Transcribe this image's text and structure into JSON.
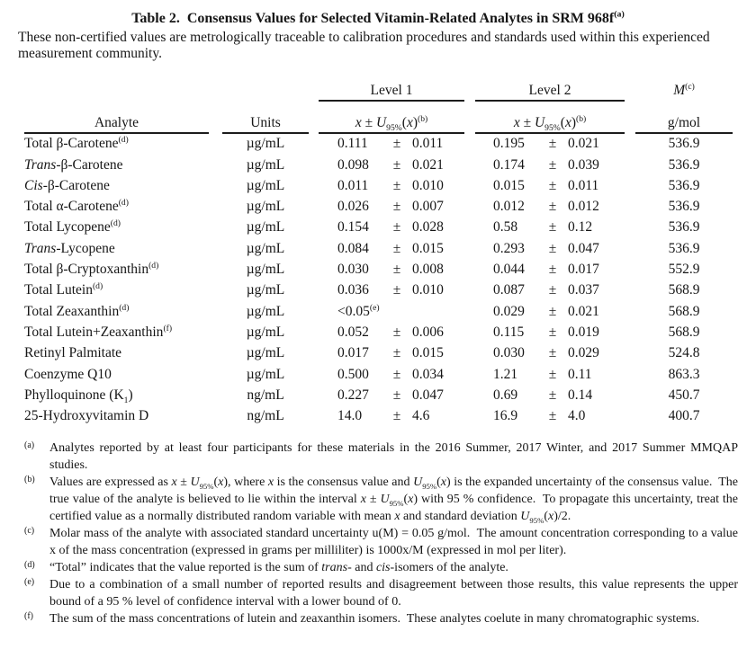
{
  "colors": {
    "text": "#161616",
    "background": "#ffffff",
    "rule": "#1c1c1c"
  },
  "title_segments": [
    {
      "t": "Table 2.  Consensus Values for Selected Vitamin-Related Analytes in SRM 968f"
    },
    {
      "t": "(a)",
      "s": "sup"
    }
  ],
  "subtitle": "These non-certified values are metrologically traceable to calibration procedures and standards used within this experienced measurement community.",
  "table": {
    "group_headers": {
      "level1": "Level 1",
      "level2": "Level 2"
    },
    "m_header_segments": [
      {
        "t": "M",
        "s": "i"
      },
      {
        "t": "(c)",
        "s": "sup"
      }
    ],
    "m_units": "g/mol",
    "headers": {
      "analyte": "Analyte",
      "units": "Units"
    },
    "value_expr_segments": [
      {
        "t": "x",
        "s": "i"
      },
      {
        "t": " ± "
      },
      {
        "t": "U",
        "s": "i"
      },
      {
        "t": "95%",
        "s": "sub"
      },
      {
        "t": "("
      },
      {
        "t": "x",
        "s": "i"
      },
      {
        "t": ")"
      },
      {
        "t": "(b)",
        "s": "sup"
      }
    ],
    "rows": [
      {
        "analyte": [
          {
            "t": "Total β-Carotene"
          },
          {
            "t": "(d)",
            "s": "sup"
          }
        ],
        "units": "µg/mL",
        "l1": {
          "val": "0.111",
          "pm": "±",
          "unc": "0.011"
        },
        "l2": {
          "val": "0.195",
          "pm": "±",
          "unc": "0.021"
        },
        "m": "536.9"
      },
      {
        "analyte": [
          {
            "t": "Trans",
            "s": "i"
          },
          {
            "t": "-β-Carotene"
          }
        ],
        "units": "µg/mL",
        "l1": {
          "val": "0.098",
          "pm": "±",
          "unc": "0.021"
        },
        "l2": {
          "val": "0.174",
          "pm": "±",
          "unc": "0.039"
        },
        "m": "536.9"
      },
      {
        "analyte": [
          {
            "t": "Cis",
            "s": "i"
          },
          {
            "t": "-β-Carotene"
          }
        ],
        "units": "µg/mL",
        "l1": {
          "val": "0.011",
          "pm": "±",
          "unc": "0.010"
        },
        "l2": {
          "val": "0.015",
          "pm": "±",
          "unc": "0.011"
        },
        "m": "536.9"
      },
      {
        "analyte": [
          {
            "t": "Total α-Carotene"
          },
          {
            "t": "(d)",
            "s": "sup"
          }
        ],
        "units": "µg/mL",
        "l1": {
          "val": "0.026",
          "pm": "±",
          "unc": "0.007"
        },
        "l2": {
          "val": "0.012",
          "pm": "±",
          "unc": "0.012"
        },
        "m": "536.9"
      },
      {
        "analyte": [
          {
            "t": "Total Lycopene"
          },
          {
            "t": "(d)",
            "s": "sup"
          }
        ],
        "units": "µg/mL",
        "l1": {
          "val": "0.154",
          "pm": "±",
          "unc": "0.028"
        },
        "l2": {
          "val": "0.58",
          "pm": "±",
          "unc": "0.12"
        },
        "m": "536.9"
      },
      {
        "analyte": [
          {
            "t": "Trans",
            "s": "i"
          },
          {
            "t": "-Lycopene"
          }
        ],
        "units": "µg/mL",
        "l1": {
          "val": "0.084",
          "pm": "±",
          "unc": "0.015"
        },
        "l2": {
          "val": "0.293",
          "pm": "±",
          "unc": "0.047"
        },
        "m": "536.9"
      },
      {
        "analyte": [
          {
            "t": "Total β-Cryptoxanthin"
          },
          {
            "t": "(d)",
            "s": "sup"
          }
        ],
        "units": "µg/mL",
        "l1": {
          "val": "0.030",
          "pm": "±",
          "unc": "0.008"
        },
        "l2": {
          "val": "0.044",
          "pm": "±",
          "unc": "0.017"
        },
        "m": "552.9"
      },
      {
        "analyte": [
          {
            "t": "Total Lutein"
          },
          {
            "t": "(d)",
            "s": "sup"
          }
        ],
        "units": "µg/mL",
        "l1": {
          "val": "0.036",
          "pm": "±",
          "unc": "0.010"
        },
        "l2": {
          "val": "0.087",
          "pm": "±",
          "unc": "0.037"
        },
        "m": "568.9"
      },
      {
        "analyte": [
          {
            "t": "Total Zeaxanthin"
          },
          {
            "t": "(d)",
            "s": "sup"
          }
        ],
        "units": "µg/mL",
        "l1": {
          "val": "<0.05",
          "val_sup": "(e)",
          "pm": "",
          "unc": ""
        },
        "l2": {
          "val": "0.029",
          "pm": "±",
          "unc": "0.021"
        },
        "m": "568.9"
      },
      {
        "analyte": [
          {
            "t": "Total Lutein+Zeaxanthin"
          },
          {
            "t": "(f)",
            "s": "sup"
          }
        ],
        "units": "µg/mL",
        "l1": {
          "val": "0.052",
          "pm": "±",
          "unc": "0.006"
        },
        "l2": {
          "val": "0.115",
          "pm": "±",
          "unc": "0.019"
        },
        "m": "568.9"
      },
      {
        "analyte": [
          {
            "t": "Retinyl Palmitate"
          }
        ],
        "units": "µg/mL",
        "l1": {
          "val": "0.017",
          "pm": "±",
          "unc": "0.015"
        },
        "l2": {
          "val": "0.030",
          "pm": "±",
          "unc": "0.029"
        },
        "m": "524.8"
      },
      {
        "analyte": [
          {
            "t": "Coenzyme Q10"
          }
        ],
        "units": "µg/mL",
        "l1": {
          "val": "0.500",
          "pm": "±",
          "unc": "0.034"
        },
        "l2": {
          "val": "1.21",
          "pm": "±",
          "unc": "0.11"
        },
        "m": "863.3"
      },
      {
        "analyte": [
          {
            "t": "Phylloquinone (K"
          },
          {
            "t": "1",
            "s": "sub"
          },
          {
            "t": ")"
          }
        ],
        "units": "ng/mL",
        "l1": {
          "val": "0.227",
          "pm": "±",
          "unc": "0.047"
        },
        "l2": {
          "val": "0.69",
          "pm": "±",
          "unc": "0.14"
        },
        "m": "450.7"
      },
      {
        "analyte": [
          {
            "t": "25-Hydroxyvitamin D"
          }
        ],
        "units": "ng/mL",
        "l1": {
          "val": "14.0",
          "pm": "±",
          "unc": "4.6"
        },
        "l2": {
          "val": "16.9",
          "pm": "±",
          "unc": "4.0"
        },
        "m": "400.7"
      }
    ]
  },
  "footnotes": [
    {
      "label": "(a)",
      "segments": [
        {
          "t": "Analytes reported by at least four participants for these materials in the 2016 Summer, 2017 Winter, and 2017 Summer MMQAP studies."
        }
      ]
    },
    {
      "label": "(b)",
      "segments": [
        {
          "t": "Values are expressed as "
        },
        {
          "t": "x",
          "s": "i"
        },
        {
          "t": " ± "
        },
        {
          "t": "U",
          "s": "i"
        },
        {
          "t": "95%",
          "s": "sub"
        },
        {
          "t": "("
        },
        {
          "t": "x",
          "s": "i"
        },
        {
          "t": "), where "
        },
        {
          "t": "x",
          "s": "i"
        },
        {
          "t": " is the consensus value and "
        },
        {
          "t": "U",
          "s": "i"
        },
        {
          "t": "95%",
          "s": "sub"
        },
        {
          "t": "("
        },
        {
          "t": "x",
          "s": "i"
        },
        {
          "t": ") is the expanded uncertainty of the consensus value.  The true value of the analyte is believed to lie within the interval "
        },
        {
          "t": "x",
          "s": "i"
        },
        {
          "t": " ± "
        },
        {
          "t": "U",
          "s": "i"
        },
        {
          "t": "95%",
          "s": "sub"
        },
        {
          "t": "("
        },
        {
          "t": "x",
          "s": "i"
        },
        {
          "t": ") with 95 % confidence.  To propagate this uncertainty, treat the certified value as a normally distributed random variable with mean "
        },
        {
          "t": "x",
          "s": "i"
        },
        {
          "t": " and standard deviation "
        },
        {
          "t": "U",
          "s": "i"
        },
        {
          "t": "95%",
          "s": "sub"
        },
        {
          "t": "("
        },
        {
          "t": "x",
          "s": "i"
        },
        {
          "t": ")/2."
        }
      ]
    },
    {
      "label": "(c)",
      "segments": [
        {
          "t": "Molar mass of the analyte with associated standard uncertainty u(M) = 0.05 g/mol.  The amount concentration corresponding to a value x of the mass concentration (expressed in grams per milliliter) is 1000x/M (expressed in mol per liter)."
        }
      ]
    },
    {
      "label": "(d)",
      "segments": [
        {
          "t": "“Total” indicates that the value reported is the sum of "
        },
        {
          "t": "trans",
          "s": "i"
        },
        {
          "t": "- and "
        },
        {
          "t": "cis",
          "s": "i"
        },
        {
          "t": "-isomers of the analyte."
        }
      ]
    },
    {
      "label": "(e)",
      "segments": [
        {
          "t": "Due to a combination of a small number of reported results and disagreement between those results, this value represents the upper bound of a 95 % level of confidence interval with a lower bound of 0."
        }
      ]
    },
    {
      "label": "(f)",
      "segments": [
        {
          "t": "The sum of the mass concentrations of lutein and zeaxanthin isomers.  These analytes coelute in many chromatographic systems."
        }
      ]
    }
  ]
}
